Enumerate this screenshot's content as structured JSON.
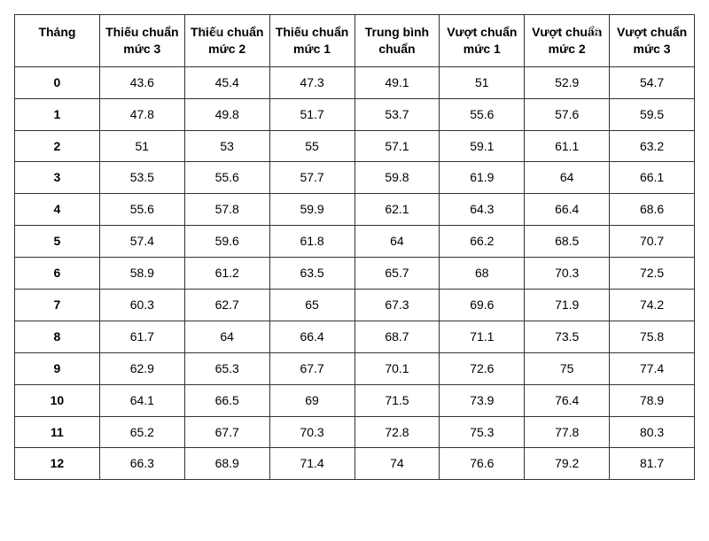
{
  "table": {
    "type": "table",
    "border_color": "#333333",
    "background_color": "#ffffff",
    "header_font_weight": "bold",
    "rowlabel_font_weight": "bold",
    "font_size": 14,
    "columns": [
      "Tháng",
      "Thiếu chuẩn mức 3",
      "Thiếu chuẩn mức 2",
      "Thiếu chuẩn mức 1",
      "Trung bình chuẩn",
      "Vượt chuẩn mức 1",
      "Vượt chuẩn mức 2",
      "Vượt chuẩn mức 3"
    ],
    "rows": [
      [
        "0",
        "43.6",
        "45.4",
        "47.3",
        "49.1",
        "51",
        "52.9",
        "54.7"
      ],
      [
        "1",
        "47.8",
        "49.8",
        "51.7",
        "53.7",
        "55.6",
        "57.6",
        "59.5"
      ],
      [
        "2",
        "51",
        "53",
        "55",
        "57.1",
        "59.1",
        "61.1",
        "63.2"
      ],
      [
        "3",
        "53.5",
        "55.6",
        "57.7",
        "59.8",
        "61.9",
        "64",
        "66.1"
      ],
      [
        "4",
        "55.6",
        "57.8",
        "59.9",
        "62.1",
        "64.3",
        "66.4",
        "68.6"
      ],
      [
        "5",
        "57.4",
        "59.6",
        "61.8",
        "64",
        "66.2",
        "68.5",
        "70.7"
      ],
      [
        "6",
        "58.9",
        "61.2",
        "63.5",
        "65.7",
        "68",
        "70.3",
        "72.5"
      ],
      [
        "7",
        "60.3",
        "62.7",
        "65",
        "67.3",
        "69.6",
        "71.9",
        "74.2"
      ],
      [
        "8",
        "61.7",
        "64",
        "66.4",
        "68.7",
        "71.1",
        "73.5",
        "75.8"
      ],
      [
        "9",
        "62.9",
        "65.3",
        "67.7",
        "70.1",
        "72.6",
        "75",
        "77.4"
      ],
      [
        "10",
        "64.1",
        "66.5",
        "69",
        "71.5",
        "73.9",
        "76.4",
        "78.9"
      ],
      [
        "11",
        "65.2",
        "67.7",
        "70.3",
        "72.8",
        "75.3",
        "77.8",
        "80.3"
      ],
      [
        "12",
        "66.3",
        "68.9",
        "71.4",
        "74",
        "76.6",
        "79.2",
        "81.7"
      ]
    ]
  }
}
